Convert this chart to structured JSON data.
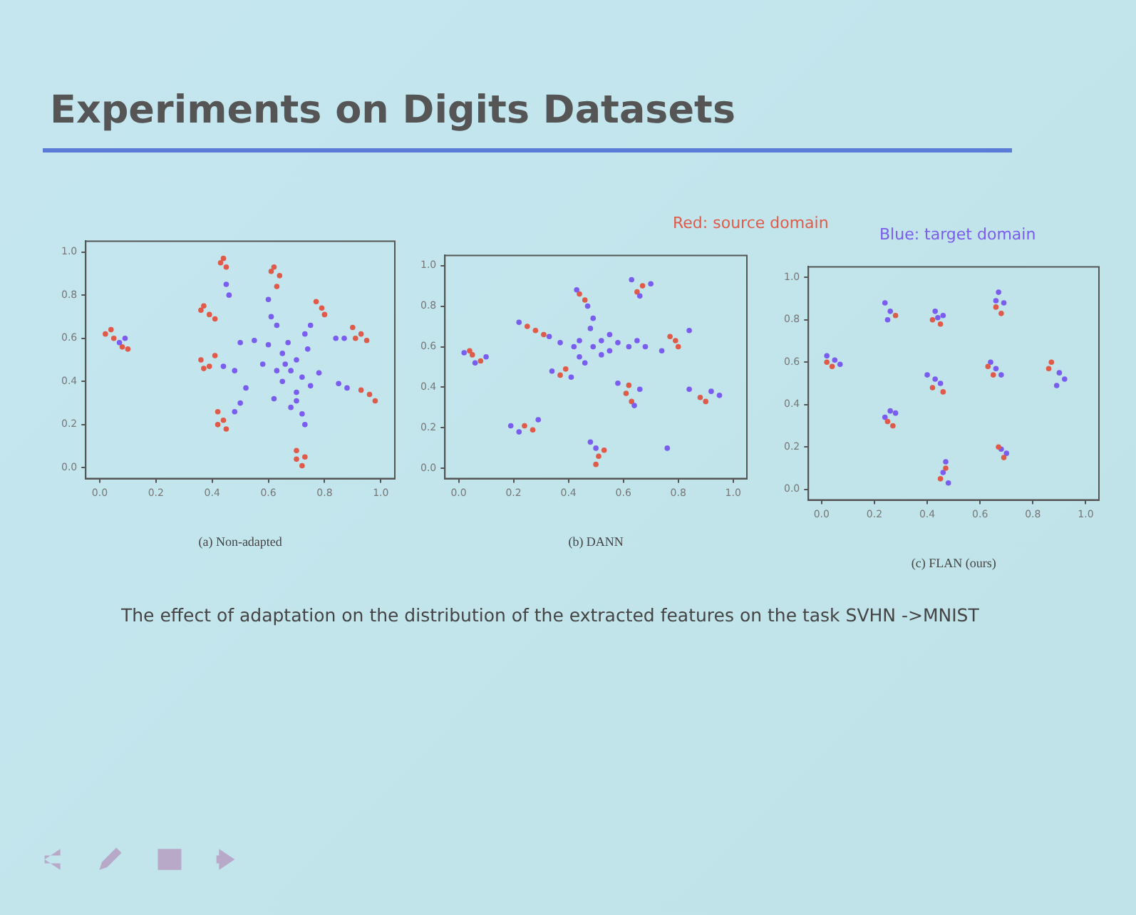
{
  "chart_data": [
    {
      "type": "scatter",
      "title": "Experiments on Digits Datasets",
      "xlabel": "(a) Non-adapted",
      "annotations": [
        "The effect of adaptation on the distribution of the extracted features on the task SVHN ->MNIST"
      ],
      "marker": "circle",
      "xlim": [
        -0.05,
        1.05
      ],
      "ylim": [
        -0.05,
        1.05
      ],
      "xticks": [
        {
          "value": 0,
          "label": "0.0"
        },
        {
          "value": 0.2,
          "label": "0.2"
        },
        {
          "value": 0.4,
          "label": "0.4"
        },
        {
          "value": 0.6,
          "label": "0.6"
        },
        {
          "value": 0.8,
          "label": "0.8"
        },
        {
          "value": 1,
          "label": "1.0"
        }
      ],
      "yticks": [
        {
          "value": 0,
          "label": "0.0"
        },
        {
          "value": 0.2,
          "label": "0.2"
        },
        {
          "value": 0.4,
          "label": "0.4"
        },
        {
          "value": 0.6,
          "label": "0.6"
        },
        {
          "value": 0.8,
          "label": "0.8"
        },
        {
          "value": 1,
          "label": "1.0"
        }
      ],
      "series": [
        {
          "color": "#7b5cf0",
          "x": [
            0.09,
            0.07,
            0.45,
            0.46,
            0.6,
            0.61,
            0.63,
            0.75,
            0.73,
            0.84,
            0.87,
            0.5,
            0.55,
            0.6,
            0.48,
            0.44,
            0.85,
            0.88,
            0.52,
            0.5,
            0.48,
            0.65,
            0.7,
            0.68,
            0.72,
            0.65,
            0.7,
            0.75,
            0.62,
            0.68,
            0.72,
            0.73,
            0.7,
            0.66,
            0.63,
            0.78,
            0.58,
            0.74,
            0.67
          ],
          "values": [
            0.6,
            0.58,
            0.85,
            0.8,
            0.78,
            0.7,
            0.66,
            0.66,
            0.62,
            0.6,
            0.6,
            0.58,
            0.59,
            0.57,
            0.45,
            0.47,
            0.39,
            0.37,
            0.37,
            0.3,
            0.26,
            0.53,
            0.5,
            0.45,
            0.42,
            0.4,
            0.35,
            0.38,
            0.32,
            0.28,
            0.25,
            0.2,
            0.31,
            0.48,
            0.45,
            0.44,
            0.48,
            0.55,
            0.58
          ]
        },
        {
          "color": "#e05a4a",
          "x": [
            0.02,
            0.05,
            0.08,
            0.04,
            0.1,
            0.44,
            0.45,
            0.43,
            0.62,
            0.64,
            0.63,
            0.61,
            0.36,
            0.39,
            0.41,
            0.37,
            0.77,
            0.79,
            0.8,
            0.9,
            0.93,
            0.95,
            0.91,
            0.36,
            0.39,
            0.41,
            0.37,
            0.93,
            0.96,
            0.98,
            0.42,
            0.44,
            0.45,
            0.42,
            0.7,
            0.73,
            0.72,
            0.7
          ],
          "values": [
            0.62,
            0.6,
            0.56,
            0.64,
            0.55,
            0.97,
            0.93,
            0.95,
            0.93,
            0.89,
            0.84,
            0.91,
            0.73,
            0.71,
            0.69,
            0.75,
            0.77,
            0.74,
            0.71,
            0.65,
            0.62,
            0.59,
            0.6,
            0.5,
            0.47,
            0.52,
            0.46,
            0.36,
            0.34,
            0.31,
            0.26,
            0.22,
            0.18,
            0.2,
            0.08,
            0.05,
            0.01,
            0.04
          ]
        }
      ]
    },
    {
      "type": "scatter",
      "xlabel": "(b) DANN",
      "marker": "circle",
      "xlim": [
        -0.05,
        1.05
      ],
      "ylim": [
        -0.05,
        1.05
      ],
      "xticks": [
        {
          "value": 0,
          "label": "0.0"
        },
        {
          "value": 0.2,
          "label": "0.2"
        },
        {
          "value": 0.4,
          "label": "0.4"
        },
        {
          "value": 0.6,
          "label": "0.6"
        },
        {
          "value": 0.8,
          "label": "0.8"
        },
        {
          "value": 1,
          "label": "1.0"
        }
      ],
      "yticks": [
        {
          "value": 0,
          "label": "0.0"
        },
        {
          "value": 0.2,
          "label": "0.2"
        },
        {
          "value": 0.4,
          "label": "0.4"
        },
        {
          "value": 0.6,
          "label": "0.6"
        },
        {
          "value": 0.8,
          "label": "0.8"
        },
        {
          "value": 1,
          "label": "1.0"
        }
      ],
      "series": [
        {
          "color": "#7b5cf0",
          "x": [
            0.02,
            0.1,
            0.06,
            0.63,
            0.7,
            0.66,
            0.43,
            0.47,
            0.49,
            0.48,
            0.22,
            0.33,
            0.37,
            0.42,
            0.44,
            0.49,
            0.52,
            0.55,
            0.58,
            0.62,
            0.55,
            0.65,
            0.68,
            0.52,
            0.84,
            0.74,
            0.34,
            0.41,
            0.58,
            0.66,
            0.64,
            0.84,
            0.92,
            0.95,
            0.19,
            0.29,
            0.22,
            0.48,
            0.5,
            0.76,
            0.44,
            0.46
          ],
          "values": [
            0.57,
            0.55,
            0.52,
            0.93,
            0.91,
            0.85,
            0.88,
            0.8,
            0.74,
            0.69,
            0.72,
            0.65,
            0.62,
            0.6,
            0.63,
            0.6,
            0.63,
            0.58,
            0.62,
            0.6,
            0.66,
            0.63,
            0.6,
            0.56,
            0.68,
            0.58,
            0.48,
            0.45,
            0.42,
            0.39,
            0.31,
            0.39,
            0.38,
            0.36,
            0.21,
            0.24,
            0.18,
            0.13,
            0.1,
            0.1,
            0.55,
            0.52
          ]
        },
        {
          "name": "Red: source domain",
          "color": "#e05a4a",
          "x": [
            0.05,
            0.08,
            0.04,
            0.67,
            0.65,
            0.44,
            0.46,
            0.28,
            0.31,
            0.25,
            0.79,
            0.8,
            0.77,
            0.37,
            0.39,
            0.61,
            0.63,
            0.62,
            0.88,
            0.9,
            0.24,
            0.27,
            0.51,
            0.5,
            0.53
          ],
          "values": [
            0.56,
            0.53,
            0.58,
            0.9,
            0.87,
            0.86,
            0.83,
            0.68,
            0.66,
            0.7,
            0.63,
            0.6,
            0.65,
            0.46,
            0.49,
            0.37,
            0.33,
            0.41,
            0.35,
            0.33,
            0.21,
            0.19,
            0.06,
            0.02,
            0.09
          ]
        }
      ]
    },
    {
      "type": "scatter",
      "xlabel": "(c) FLAN (ours)",
      "marker": "circle",
      "xlim": [
        -0.05,
        1.05
      ],
      "ylim": [
        -0.05,
        1.05
      ],
      "xticks": [
        {
          "value": 0,
          "label": "0.0"
        },
        {
          "value": 0.2,
          "label": "0.2"
        },
        {
          "value": 0.4,
          "label": "0.4"
        },
        {
          "value": 0.6,
          "label": "0.6"
        },
        {
          "value": 0.8,
          "label": "0.8"
        },
        {
          "value": 1,
          "label": "1.0"
        }
      ],
      "yticks": [
        {
          "value": 0,
          "label": "0.0"
        },
        {
          "value": 0.2,
          "label": "0.2"
        },
        {
          "value": 0.4,
          "label": "0.4"
        },
        {
          "value": 0.6,
          "label": "0.6"
        },
        {
          "value": 0.8,
          "label": "0.8"
        },
        {
          "value": 1,
          "label": "1.0"
        }
      ],
      "series": [
        {
          "color": "#e05a4a",
          "x": [
            0.04,
            0.02,
            0.28,
            0.45,
            0.42,
            0.68,
            0.66,
            0.42,
            0.46,
            0.63,
            0.65,
            0.87,
            0.86,
            0.25,
            0.27,
            0.67,
            0.69,
            0.45,
            0.47
          ],
          "values": [
            0.58,
            0.6,
            0.82,
            0.78,
            0.8,
            0.83,
            0.86,
            0.48,
            0.46,
            0.58,
            0.54,
            0.6,
            0.57,
            0.32,
            0.3,
            0.2,
            0.15,
            0.05,
            0.1
          ]
        },
        {
          "name": "Blue: target domain",
          "color": "#7b5cf0",
          "x": [
            0.02,
            0.05,
            0.07,
            0.24,
            0.26,
            0.25,
            0.43,
            0.44,
            0.46,
            0.67,
            0.66,
            0.69,
            0.4,
            0.43,
            0.45,
            0.66,
            0.68,
            0.64,
            0.9,
            0.92,
            0.89,
            0.26,
            0.28,
            0.24,
            0.68,
            0.7,
            0.47,
            0.46,
            0.48
          ],
          "values": [
            0.63,
            0.61,
            0.59,
            0.88,
            0.84,
            0.8,
            0.84,
            0.81,
            0.82,
            0.93,
            0.89,
            0.88,
            0.54,
            0.52,
            0.5,
            0.57,
            0.54,
            0.6,
            0.55,
            0.52,
            0.49,
            0.37,
            0.36,
            0.34,
            0.19,
            0.17,
            0.13,
            0.08,
            0.03
          ]
        }
      ]
    }
  ]
}
